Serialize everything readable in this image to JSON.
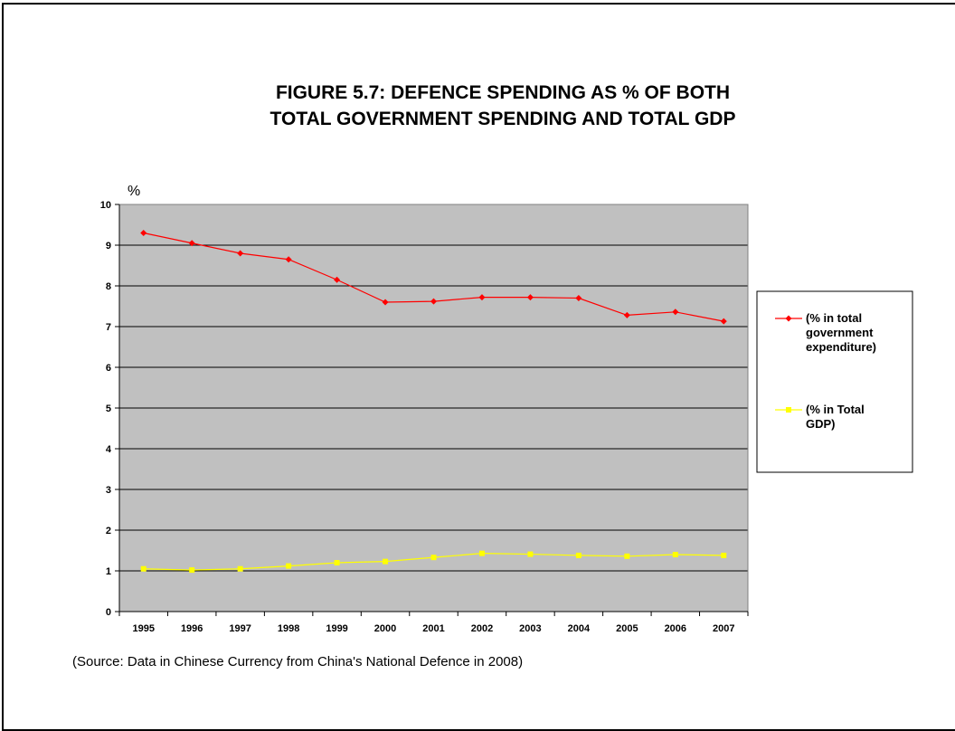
{
  "title": {
    "line1": "FIGURE 5.7: DEFENCE SPENDING AS % OF BOTH",
    "line2": "TOTAL GOVERNMENT SPENDING AND TOTAL GDP"
  },
  "source": "(Source: Data in Chinese Currency from China's National Defence in 2008)",
  "chart_data": {
    "type": "line",
    "title": "FIGURE 5.7: DEFENCE SPENDING AS % OF BOTH TOTAL GOVERNMENT SPENDING AND TOTAL GDP",
    "ylabel": "%",
    "xlabel": "",
    "ylim": [
      0,
      10
    ],
    "yticks": [
      "0",
      "1",
      "2",
      "3",
      "4",
      "5",
      "6",
      "7",
      "8",
      "9",
      "10"
    ],
    "grid": true,
    "legend_position": "right",
    "categories": [
      "1995",
      "1996",
      "1997",
      "1998",
      "1999",
      "2000",
      "2001",
      "2002",
      "2003",
      "2004",
      "2005",
      "2006",
      "2007"
    ],
    "series": [
      {
        "name_lines": [
          "(% in total",
          "government",
          "expenditure)"
        ],
        "color": "#ff0000",
        "marker": "diamond",
        "values": [
          9.3,
          9.05,
          8.8,
          8.65,
          8.15,
          7.6,
          7.62,
          7.72,
          7.72,
          7.7,
          7.28,
          7.36,
          7.13
        ]
      },
      {
        "name_lines": [
          "(% in Total",
          "GDP)"
        ],
        "color": "#ffff00",
        "marker": "square",
        "values": [
          1.05,
          1.02,
          1.05,
          1.12,
          1.2,
          1.23,
          1.33,
          1.43,
          1.41,
          1.38,
          1.36,
          1.4,
          1.38
        ]
      }
    ]
  }
}
